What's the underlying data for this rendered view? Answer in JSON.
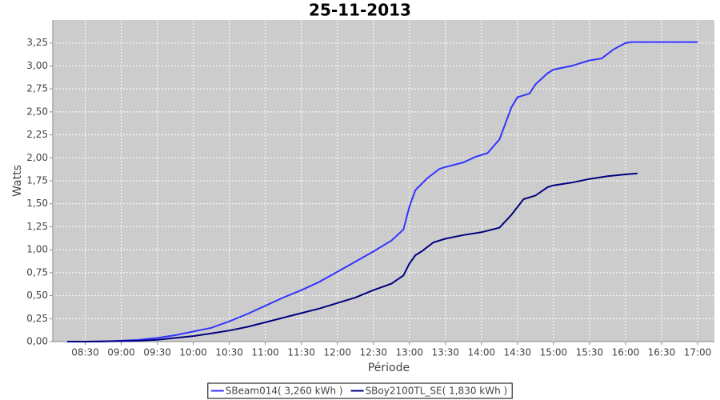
{
  "chart_data": {
    "type": "line",
    "title": "25-11-2013",
    "x_label": "Période",
    "y_label": "Watts",
    "xlim": [
      "08:03",
      "17:14"
    ],
    "ylim": [
      0,
      3.5
    ],
    "xticks": [
      "08:30",
      "09:00",
      "09:30",
      "10:00",
      "10:30",
      "11:00",
      "11:30",
      "12:00",
      "12:30",
      "13:00",
      "13:30",
      "14:00",
      "14:30",
      "15:00",
      "15:30",
      "16:00",
      "16:30",
      "17:00"
    ],
    "yticks": [
      {
        "value": 0,
        "label": "0,00"
      },
      {
        "value": 0.25,
        "label": "0,25"
      },
      {
        "value": 0.5,
        "label": "0,50"
      },
      {
        "value": 0.75,
        "label": "0,75"
      },
      {
        "value": 1,
        "label": "1,00"
      },
      {
        "value": 1.25,
        "label": "1,25"
      },
      {
        "value": 1.5,
        "label": "1,50"
      },
      {
        "value": 1.75,
        "label": "1,75"
      },
      {
        "value": 2,
        "label": "2,00"
      },
      {
        "value": 2.25,
        "label": "2,25"
      },
      {
        "value": 2.5,
        "label": "2,50"
      },
      {
        "value": 2.75,
        "label": "2,75"
      },
      {
        "value": 3,
        "label": "3,00"
      },
      {
        "value": 3.25,
        "label": "3,25"
      }
    ],
    "grid": true,
    "legend": "bottom",
    "series": [
      {
        "name": "SBeam014( 3,260 kWh )",
        "color": "#3333ff",
        "x": [
          "08:15",
          "08:30",
          "08:45",
          "09:00",
          "09:15",
          "09:30",
          "09:45",
          "10:00",
          "10:15",
          "10:30",
          "10:45",
          "11:00",
          "11:15",
          "11:30",
          "11:45",
          "12:00",
          "12:15",
          "12:30",
          "12:45",
          "12:55",
          "13:00",
          "13:05",
          "13:15",
          "13:25",
          "13:30",
          "13:45",
          "13:55",
          "14:05",
          "14:15",
          "14:25",
          "14:30",
          "14:40",
          "14:45",
          "14:55",
          "15:00",
          "15:15",
          "15:30",
          "15:40",
          "15:50",
          "16:00",
          "16:05",
          "16:15",
          "17:00"
        ],
        "values": [
          0,
          0,
          0.002,
          0.01,
          0.02,
          0.04,
          0.07,
          0.11,
          0.15,
          0.22,
          0.3,
          0.39,
          0.48,
          0.56,
          0.65,
          0.76,
          0.87,
          0.98,
          1.1,
          1.22,
          1.47,
          1.65,
          1.78,
          1.88,
          1.9,
          1.95,
          2.01,
          2.05,
          2.2,
          2.55,
          2.66,
          2.7,
          2.8,
          2.92,
          2.96,
          3.0,
          3.06,
          3.08,
          3.18,
          3.25,
          3.26,
          3.26,
          3.26
        ]
      },
      {
        "name": "SBoy2100TL_SE( 1,830 kWh )",
        "color": "#000080",
        "x": [
          "08:15",
          "08:30",
          "09:00",
          "09:15",
          "09:30",
          "09:45",
          "10:00",
          "10:15",
          "10:30",
          "10:45",
          "11:00",
          "11:15",
          "11:30",
          "11:45",
          "12:00",
          "12:15",
          "12:30",
          "12:45",
          "12:55",
          "13:00",
          "13:05",
          "13:10",
          "13:20",
          "13:30",
          "13:45",
          "14:00",
          "14:15",
          "14:25",
          "14:35",
          "14:45",
          "14:55",
          "15:00",
          "15:15",
          "15:30",
          "15:45",
          "16:00",
          "16:10"
        ],
        "values": [
          0,
          0,
          0.005,
          0.01,
          0.02,
          0.04,
          0.06,
          0.09,
          0.12,
          0.16,
          0.21,
          0.26,
          0.31,
          0.36,
          0.42,
          0.48,
          0.56,
          0.63,
          0.72,
          0.85,
          0.94,
          0.98,
          1.08,
          1.12,
          1.16,
          1.19,
          1.24,
          1.38,
          1.55,
          1.59,
          1.68,
          1.7,
          1.73,
          1.77,
          1.8,
          1.82,
          1.83
        ]
      }
    ]
  }
}
